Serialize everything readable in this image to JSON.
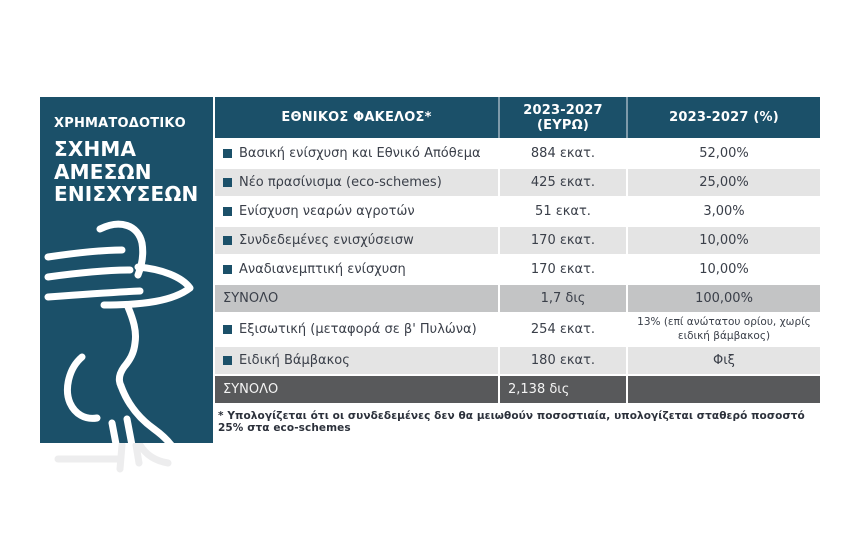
{
  "sidebar": {
    "kicker": "ΧΡΗΜΑΤΟΔΟΤΙΚΟ",
    "title_lines": [
      "ΣΧΗΜΑ",
      "ΑΜΕΣΩΝ",
      "ΕΝΙΣΧΥΣΕΩΝ"
    ],
    "icon": "farmer-hat-line-art-icon",
    "bg_color": "#1b5069"
  },
  "table": {
    "headers": [
      "ΕΘΝΙΚΟΣ ΦΑΚΕΛΟΣ*",
      "2023-2027 (ΕΥΡΩ)",
      "2023-2027 (%)"
    ],
    "rows": [
      {
        "label": "Βασική ενίσχυση και Εθνικό Απόθεμα",
        "value": "884 εκατ.",
        "pct": "52,00%",
        "type": "data",
        "shade": "white"
      },
      {
        "label": "Νέο πρασίνισμα (eco-schemes)",
        "value": "425 εκατ.",
        "pct": "25,00%",
        "type": "data",
        "shade": "light"
      },
      {
        "label": "Ενίσχυση νεαρών αγροτών",
        "value": "51 εκατ.",
        "pct": "3,00%",
        "type": "data",
        "shade": "white"
      },
      {
        "label": "Συνδεδεμένες ενισχύσεισw",
        "value": "170 εκατ.",
        "pct": "10,00%",
        "type": "data",
        "shade": "light"
      },
      {
        "label": "Αναδιανεμπτική ενίσχυση",
        "value": "170 εκατ.",
        "pct": "10,00%",
        "type": "data",
        "shade": "white"
      },
      {
        "label": "ΣΥΝΟΛΟ",
        "value": "1,7 δις",
        "pct": "100,00%",
        "type": "subtotal",
        "shade": "mid"
      },
      {
        "label": "Εξισωτική (μεταφορά σε β' Πυλώνα)",
        "value": "254 εκατ.",
        "pct": "13% (επί ανώτατου ορίου, χωρίς ειδική βάμβακος)",
        "type": "data",
        "shade": "white"
      },
      {
        "label": "Ειδική Βάμβακος",
        "value": "180 εκατ.",
        "pct": "Φιξ",
        "type": "data",
        "shade": "light"
      },
      {
        "label": "ΣΥΝΟΛΟ",
        "value": "2,138 δις",
        "pct": "",
        "type": "total",
        "shade": "dark"
      }
    ],
    "footnote": "* Υπολογίζεται ότι οι συνδεδεμένες δεν θα μειωθούν ποσοστιαία, υπολογίζεται σταθερό ποσοστό 25% στα eco-schemes"
  },
  "colors": {
    "accent_blue": "#1b5069",
    "row_light": "#e4e4e4",
    "row_mid": "#c3c4c5",
    "row_dark": "#58595b",
    "text": "#3a3f49"
  },
  "chart_data": {
    "type": "table",
    "title": "ΧΡΗΜΑΤΟΔΟΤΙΚΟ ΣΧΗΜΑ ΑΜΕΣΩΝ ΕΝΙΣΧΥΣΕΩΝ",
    "columns": [
      "ΕΘΝΙΚΟΣ ΦΑΚΕΛΟΣ*",
      "2023-2027 (ΕΥΡΩ)",
      "2023-2027 (%)"
    ],
    "rows": [
      [
        "Βασική ενίσχυση και Εθνικό Απόθεμα",
        "884 εκατ.",
        "52,00%"
      ],
      [
        "Νέο πρασίνισμα (eco-schemes)",
        "425 εκατ.",
        "25,00%"
      ],
      [
        "Ενίσχυση νεαρών αγροτών",
        "51 εκατ.",
        "3,00%"
      ],
      [
        "Συνδεδεμένες ενισχύσεισw",
        "170 εκατ.",
        "10,00%"
      ],
      [
        "Αναδιανεμπτική ενίσχυση",
        "170 εκατ.",
        "10,00%"
      ],
      [
        "ΣΥΝΟΛΟ",
        "1,7 δις",
        "100,00%"
      ],
      [
        "Εξισωτική (μεταφορά σε β' Πυλώνα)",
        "254 εκατ.",
        "13% (επί ανώτατου ορίου, χωρίς ειδική βάμβακος)"
      ],
      [
        "Ειδική Βάμβακος",
        "180 εκατ.",
        "Φιξ"
      ],
      [
        "ΣΥΝΟΛΟ",
        "2,138 δις",
        ""
      ]
    ],
    "footnote": "* Υπολογίζεται ότι οι συνδεδεμένες δεν θα μειωθούν ποσοστιαία, υπολογίζεται σταθερό ποσοστό 25% στα eco-schemes"
  }
}
